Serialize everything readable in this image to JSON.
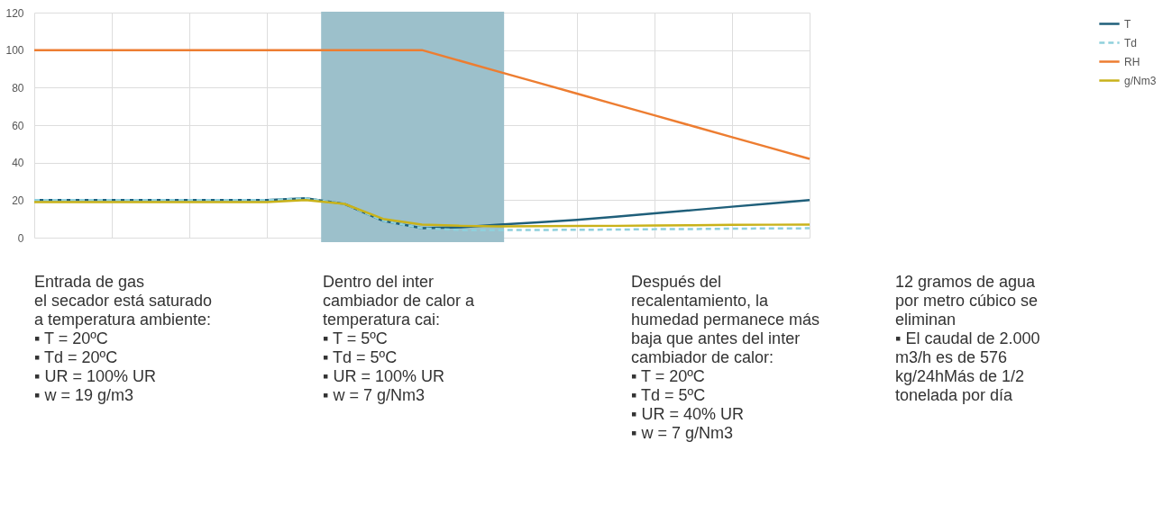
{
  "chart_data": {
    "type": "line",
    "categories": [
      null,
      null,
      null,
      null,
      null,
      null,
      null,
      null,
      null,
      null,
      null,
      null,
      null,
      null,
      null,
      null,
      null,
      null,
      null,
      null,
      null
    ],
    "series": [
      {
        "name": "T",
        "color": "#1f5f7a",
        "line_style": "solid",
        "values": [
          20,
          20,
          20,
          20,
          20,
          20,
          20,
          21,
          18,
          9,
          5,
          5.5,
          7,
          8.2,
          9.5,
          11.2,
          13,
          14.7,
          16.5,
          18.2,
          20
        ]
      },
      {
        "name": "Td",
        "color": "#8fd0dc",
        "line_style": "dashed",
        "values": [
          20,
          20,
          20,
          20,
          20,
          20,
          20,
          21,
          18,
          9,
          5,
          4,
          4,
          4.1,
          4.2,
          4.3,
          4.5,
          4.6,
          4.8,
          4.9,
          5
        ]
      },
      {
        "name": "RH",
        "color": "#ed7d31",
        "line_style": "solid",
        "values": [
          100,
          100,
          100,
          100,
          100,
          100,
          100,
          100,
          100,
          100,
          100,
          94.2,
          88.4,
          82.6,
          76.8,
          71,
          65.2,
          59.4,
          53.6,
          47.8,
          42
        ]
      },
      {
        "name": "g/Nm3",
        "color": "#c9b21a",
        "line_style": "solid",
        "values": [
          19,
          19,
          19,
          19,
          19,
          19,
          19,
          20,
          18,
          10,
          7,
          6.3,
          6,
          6.1,
          6.2,
          6.3,
          6.5,
          6.6,
          6.8,
          6.9,
          7
        ]
      }
    ],
    "ylim": [
      0,
      120
    ],
    "yticks": [
      0,
      20,
      40,
      60,
      80,
      100,
      120
    ],
    "grid": true,
    "legend": "right",
    "annotations": [
      "Entrada de gas\nel secador está saturado\na temperatura ambiente:\n▪ T = 20ºC\n▪ Td = 20ºC\n▪ UR = 100% UR\n▪ w = 19 g/m3",
      "Dentro del inter\ncambiador de calor a\ntemperatura cai:\n▪ T = 5ºC\n▪ Td = 5ºC\n▪ UR = 100% UR\n▪ w = 7 g/Nm3",
      "Después del\nrecalentamiento, la\nhumedad permanece más\nbaja que antes del inter\ncambiador de calor:\n▪ T = 20ºC\n▪ Td = 5ºC\n▪ UR = 40% UR\n▪ w = 7 g/Nm3",
      "12 gramos de agua\npor metro cúbico se\neliminan\n▪ El caudal de 2.000\nm3/h es de 576\nkg/24hMás de 1/2\ntonelada por día"
    ]
  }
}
